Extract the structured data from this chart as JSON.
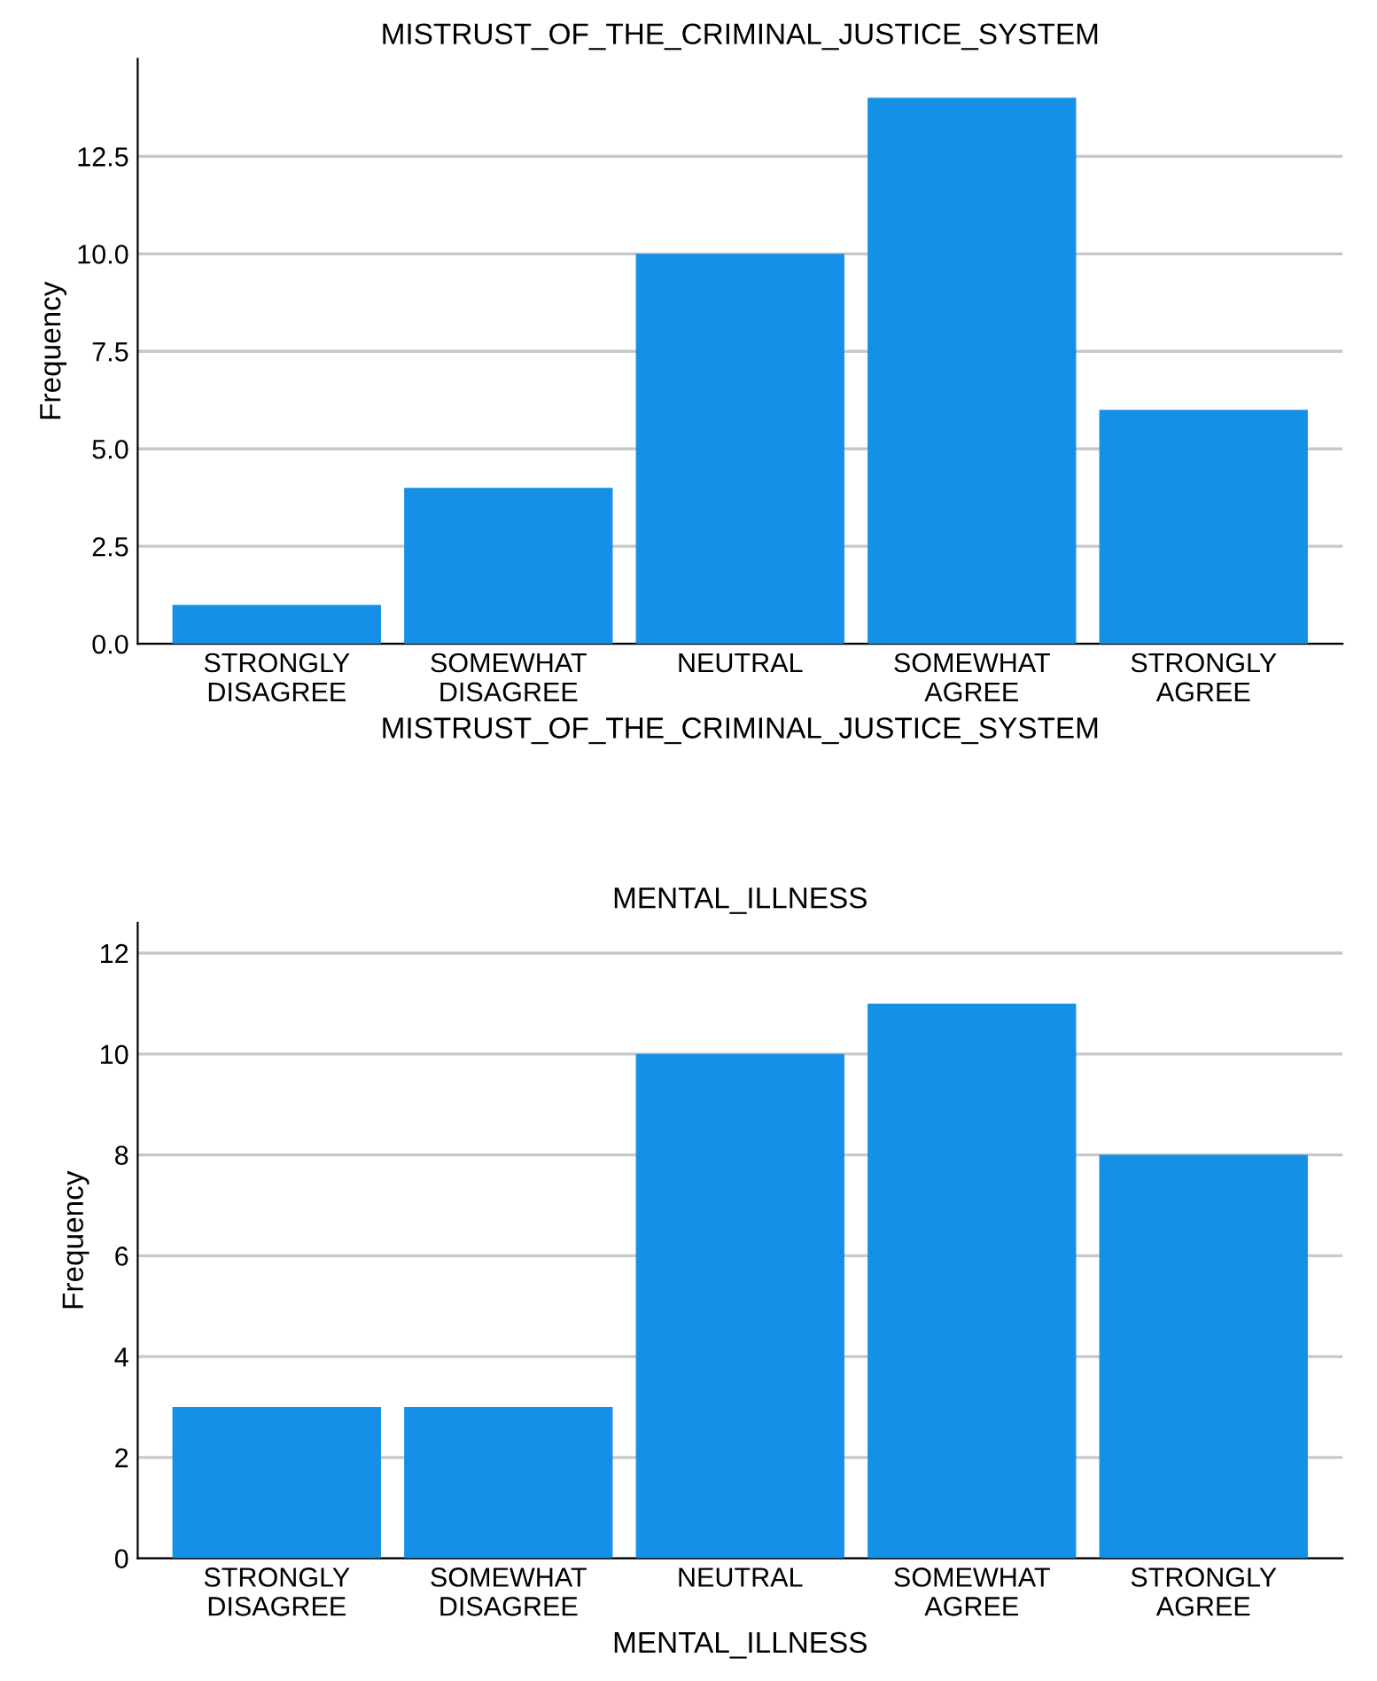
{
  "chart_data": [
    {
      "type": "bar",
      "title": "MISTRUST_OF_THE_CRIMINAL_JUSTICE_SYSTEM",
      "xlabel": "MISTRUST_OF_THE_CRIMINAL_JUSTICE_SYSTEM",
      "ylabel": "Frequency",
      "categories": [
        "STRONGLY\nDISAGREE",
        "SOMEWHAT\nDISAGREE",
        "NEUTRAL",
        "SOMEWHAT\nAGREE",
        "STRONGLY\nAGREE"
      ],
      "values": [
        1,
        4,
        10,
        14,
        6
      ],
      "color": "#1490e6",
      "ylim": [
        0,
        15
      ],
      "yticks": [
        {
          "value": 0,
          "label": "0.0"
        },
        2.5,
        {
          "value": 5,
          "label": "5.0"
        },
        7.5,
        {
          "value": 10,
          "label": "10.0"
        },
        12.5
      ],
      "grid": "y",
      "legend": false
    },
    {
      "type": "bar",
      "title": "MENTAL_ILLNESS",
      "xlabel": "MENTAL_ILLNESS",
      "ylabel": "Frequency",
      "categories": [
        "STRONGLY\nDISAGREE",
        "SOMEWHAT\nDISAGREE",
        "NEUTRAL",
        "SOMEWHAT\nAGREE",
        "STRONGLY\nAGREE"
      ],
      "values": [
        3,
        3,
        10,
        11,
        8
      ],
      "color": "#1490e6",
      "ylim": [
        0,
        12.6
      ],
      "yticks": [
        0,
        2,
        4,
        6,
        8,
        10,
        12
      ],
      "grid": "y",
      "legend": false
    }
  ]
}
